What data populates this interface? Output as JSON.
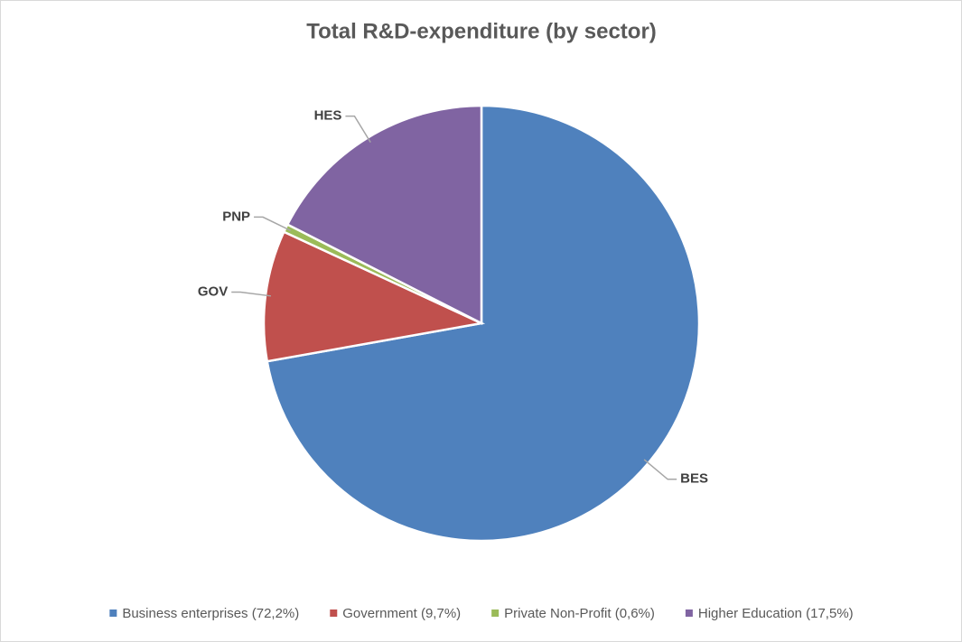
{
  "chart_data": {
    "type": "pie",
    "title": "Total R&D-expenditure (by sector)",
    "categories": [
      "Business enterprises (72,2%)",
      "Government (9,7%)",
      "Private Non-Profit (0,6%)",
      "Higher Education (17,5%)"
    ],
    "values": [
      72.2,
      9.7,
      0.6,
      17.5
    ],
    "labels": [
      "BES",
      "GOV",
      "PNP",
      "HES"
    ],
    "colors": [
      "#4f81bd",
      "#c0504d",
      "#9bbb59",
      "#8064a2"
    ],
    "legend": "bottom"
  }
}
